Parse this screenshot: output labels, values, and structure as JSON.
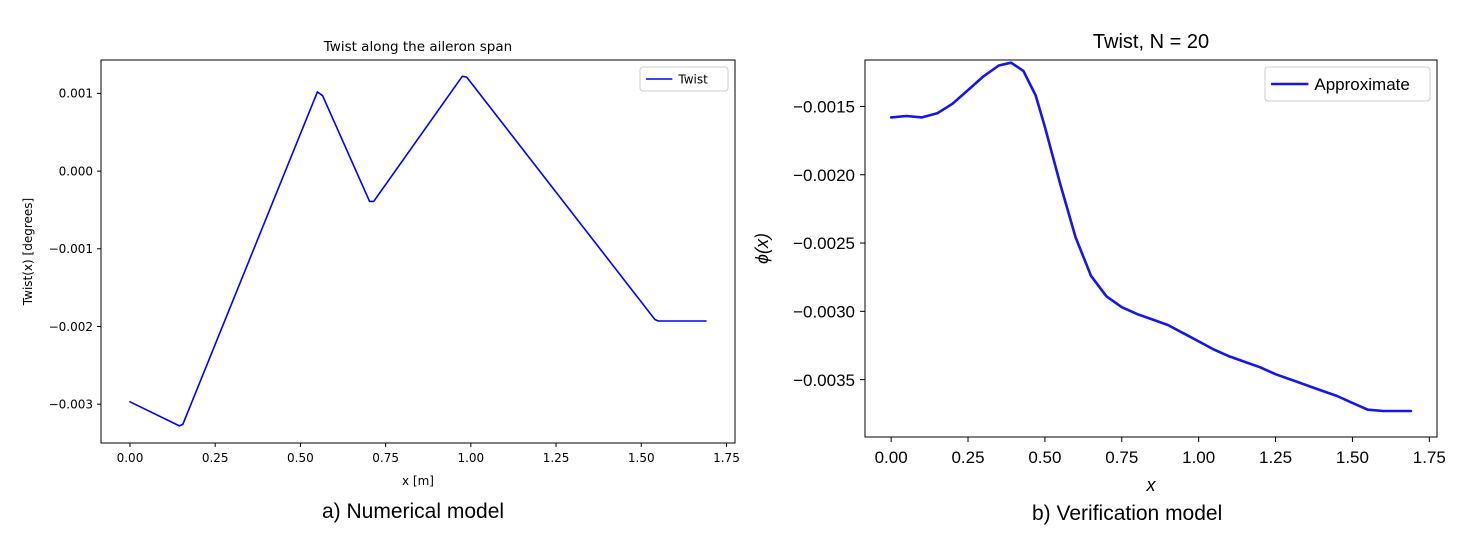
{
  "captions": {
    "left": "a) Numerical model",
    "right": "b) Verification model"
  },
  "colors": {
    "left_line": "#0000ff",
    "right_line": "#1515ee",
    "axes": "#000000"
  },
  "chart_data": [
    {
      "type": "line",
      "title": "Twist along the aileron span",
      "xlabel": "x [m]",
      "ylabel": "Twist(x) [degrees]",
      "xlim": [
        -0.085,
        1.775
      ],
      "ylim": [
        -0.0035,
        0.00143
      ],
      "xticks": [
        0.0,
        0.25,
        0.5,
        0.75,
        1.0,
        1.25,
        1.5,
        1.75
      ],
      "xtick_labels": [
        "0.00",
        "0.25",
        "0.50",
        "0.75",
        "1.00",
        "1.25",
        "1.50",
        "1.75"
      ],
      "yticks": [
        -0.003,
        -0.002,
        -0.001,
        0.0,
        0.001
      ],
      "ytick_labels": [
        "−0.003",
        "−0.002",
        "−0.001",
        "0.000",
        "0.001"
      ],
      "legend": "top-right",
      "grid": false,
      "series": [
        {
          "name": "Twist",
          "x": [
            0.0,
            0.145,
            0.155,
            0.55,
            0.565,
            0.703,
            0.715,
            0.975,
            0.988,
            1.54,
            1.55,
            1.69
          ],
          "y": [
            -0.00297,
            -0.00328,
            -0.00326,
            0.00102,
            0.00097,
            -0.00039,
            -0.00039,
            0.00122,
            0.00121,
            -0.00191,
            -0.00193,
            -0.00193
          ]
        }
      ]
    },
    {
      "type": "line",
      "title": "Twist, N = 20",
      "xlabel": "x",
      "ylabel": "ϕ(x)",
      "xlim": [
        -0.085,
        1.775
      ],
      "ylim": [
        -0.00392,
        -0.00116
      ],
      "xticks": [
        0.0,
        0.25,
        0.5,
        0.75,
        1.0,
        1.25,
        1.5,
        1.75
      ],
      "xtick_labels": [
        "0.00",
        "0.25",
        "0.50",
        "0.75",
        "1.00",
        "1.25",
        "1.50",
        "1.75"
      ],
      "yticks": [
        -0.0035,
        -0.003,
        -0.0025,
        -0.002,
        -0.0015
      ],
      "ytick_labels": [
        "−0.0035",
        "−0.0030",
        "−0.0025",
        "−0.0020",
        "−0.0015"
      ],
      "legend": "top-right",
      "grid": false,
      "series": [
        {
          "name": "Approximate",
          "x": [
            0.0,
            0.05,
            0.1,
            0.15,
            0.2,
            0.25,
            0.3,
            0.35,
            0.39,
            0.43,
            0.47,
            0.5,
            0.55,
            0.6,
            0.65,
            0.7,
            0.75,
            0.8,
            0.85,
            0.9,
            0.95,
            1.0,
            1.05,
            1.1,
            1.15,
            1.2,
            1.25,
            1.3,
            1.35,
            1.4,
            1.45,
            1.5,
            1.55,
            1.6,
            1.69
          ],
          "y": [
            -0.00158,
            -0.00157,
            -0.00158,
            -0.00155,
            -0.00148,
            -0.00138,
            -0.00128,
            -0.0012,
            -0.00118,
            -0.00124,
            -0.00142,
            -0.00165,
            -0.00207,
            -0.00246,
            -0.00274,
            -0.00289,
            -0.00297,
            -0.00302,
            -0.00306,
            -0.0031,
            -0.00316,
            -0.00322,
            -0.00328,
            -0.00333,
            -0.00337,
            -0.00341,
            -0.00346,
            -0.0035,
            -0.00354,
            -0.00358,
            -0.00362,
            -0.00367,
            -0.00372,
            -0.00373,
            -0.00373
          ]
        }
      ]
    }
  ]
}
